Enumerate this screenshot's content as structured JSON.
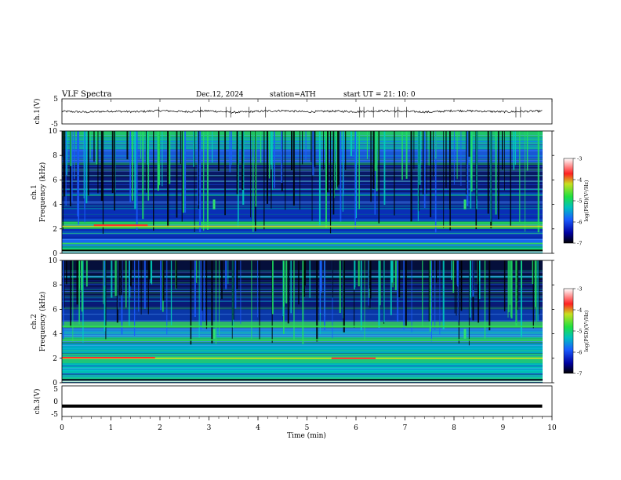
{
  "header": {
    "title": "VLF  Spectra",
    "date": "Dec.12, 2024",
    "station": "station=ATH",
    "start": "start  UT  =    21: 10: 0"
  },
  "chart_data": [
    {
      "type": "line",
      "panel": "ch1-waveform",
      "ylabel": "ch.1(V)",
      "ylim": [
        -5,
        5
      ],
      "yticks": [
        "5",
        "-5"
      ],
      "xlim": [
        0,
        10
      ],
      "x": [
        0,
        0.5,
        1,
        1.5,
        2,
        2.5,
        3,
        3.5,
        4,
        4.5,
        5,
        5.5,
        6,
        6.5,
        7,
        7.5,
        8,
        8.5,
        9,
        9.5,
        9.8
      ],
      "values": [
        0.0,
        -0.3,
        0.1,
        -0.2,
        0.3,
        -0.1,
        0.2,
        -0.4,
        0.0,
        0.3,
        -0.2,
        0.1,
        -0.1,
        0.2,
        0.0,
        -0.3,
        0.3,
        0.1,
        -0.2,
        0.0,
        0.1
      ],
      "color": "#000000"
    },
    {
      "type": "heatmap",
      "panel": "ch1-spectrogram",
      "ylabel": "ch.1\nFrequency  (kHz)",
      "ylabel_lines": [
        "ch.1",
        "Frequency  (kHz)"
      ],
      "ylim": [
        0,
        10
      ],
      "yticks": [
        "0",
        "2",
        "4",
        "6",
        "8",
        "10"
      ],
      "xlim": [
        0,
        10
      ],
      "colorbar": {
        "label": "log(PSD)(V²/Hz)",
        "range": [
          -7,
          -3
        ],
        "ticks": [
          "-3",
          "-4",
          "-5",
          "-6",
          "-7"
        ]
      },
      "features": {
        "background": "sferics (vertical broadband streaks) over blue noise floor",
        "bright_lines_khz": [
          2.2,
          0.8,
          0.3
        ]
      }
    },
    {
      "type": "heatmap",
      "panel": "ch2-spectrogram",
      "ylabel_lines": [
        "ch.2",
        "Frequency  (kHz)"
      ],
      "ylim": [
        0,
        10
      ],
      "yticks": [
        "0",
        "2",
        "4",
        "6",
        "8",
        "10"
      ],
      "xlim": [
        0,
        10
      ],
      "colorbar": {
        "label": "log(PSD)(V²/Hz)",
        "range": [
          -7,
          -3
        ],
        "ticks": [
          "-3",
          "-4",
          "-5",
          "-6",
          "-7"
        ]
      },
      "features": {
        "bright_lines_khz": [
          2.0,
          4.6,
          3.5
        ]
      }
    },
    {
      "type": "line",
      "panel": "ch3-waveform",
      "ylabel": "ch.3(V)",
      "ylim": [
        -5,
        5
      ],
      "yticks": [
        "5",
        "0",
        "-5"
      ],
      "xlim": [
        0,
        10
      ],
      "x": [
        0,
        9.8
      ],
      "values": [
        -2,
        -2
      ],
      "color": "#000000"
    }
  ],
  "xaxis": {
    "label": "Time  (min)",
    "ticks": [
      "0",
      "1",
      "2",
      "3",
      "4",
      "5",
      "6",
      "7",
      "8",
      "9",
      "10"
    ]
  },
  "colors": {
    "spectrogram_low": "#000000",
    "spectrogram_mid_low": "#0a1a8a",
    "spectrogram_mid": "#1a6cff",
    "spectrogram_high": "#00e0a0",
    "spectrogram_peak": "#e02020"
  }
}
